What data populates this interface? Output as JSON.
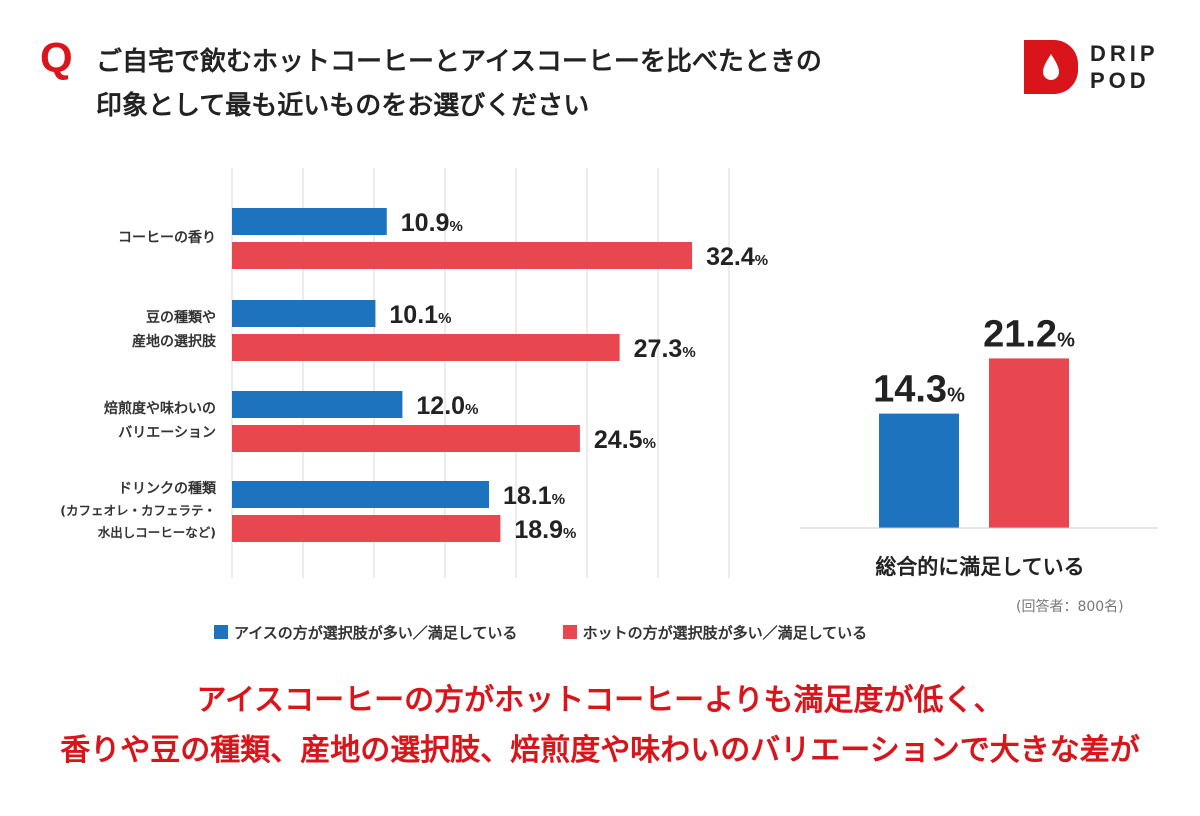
{
  "header": {
    "q_mark": "Q",
    "question_line1": "ご自宅で飲むホットコーヒーとアイスコーヒーを比べたときの",
    "question_line2": "印象として最も近いものをお選びください"
  },
  "logo": {
    "line1": "DRIP",
    "line2": "POD",
    "icon": "drop-icon"
  },
  "colors": {
    "ice": "#1e73be",
    "hot": "#e8474f",
    "accent": "#d9141a"
  },
  "chart_data": [
    {
      "type": "bar",
      "orientation": "horizontal",
      "categories": [
        [
          "コーヒーの香り"
        ],
        [
          "豆の種類や",
          "産地の選択肢"
        ],
        [
          "焙煎度や味わいの",
          "バリエーション"
        ],
        [
          "ドリンクの種類",
          "(カフェオレ・カフェラテ・",
          "水出しコーヒーなど)"
        ]
      ],
      "series": [
        {
          "name": "アイスの方が選択肢が多い／満足している",
          "values": [
            10.9,
            10.1,
            12.0,
            18.1
          ]
        },
        {
          "name": "ホットの方が選択肢が多い／満足している",
          "values": [
            32.4,
            27.3,
            24.5,
            18.9
          ]
        }
      ],
      "value_labels": [
        [
          "10.9",
          "10.1",
          "12.0",
          "18.1"
        ],
        [
          "32.4",
          "27.3",
          "24.5",
          "18.9"
        ]
      ],
      "unit": "%",
      "xlim": [
        0,
        35
      ],
      "grid": true
    },
    {
      "type": "bar",
      "orientation": "vertical",
      "categories": [
        "総合的に満足している"
      ],
      "series": [
        {
          "name": "アイスの方が選択肢が多い／満足している",
          "values": [
            14.3
          ]
        },
        {
          "name": "ホットの方が選択肢が多い／満足している",
          "values": [
            21.2
          ]
        }
      ],
      "value_labels": [
        "14.3",
        "21.2"
      ],
      "unit": "%",
      "ylim": [
        0,
        25
      ],
      "grid": false
    }
  ],
  "legend": {
    "ice_label": "アイスの方が選択肢が多い／満足している",
    "hot_label": "ホットの方が選択肢が多い／満足している"
  },
  "note": "(回答者：800名)",
  "conclusion": {
    "line1": "アイスコーヒーの方がホットコーヒーよりも満足度が低く、",
    "line2": "香りや豆の種類、産地の選択肢、焙煎度や味わいのバリエーションで大きな差が"
  }
}
